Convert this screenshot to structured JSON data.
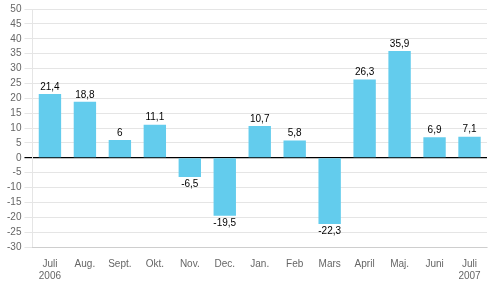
{
  "chart_data": {
    "type": "bar",
    "categories": [
      "Juli\n2006",
      "Aug.",
      "Sept.",
      "Okt.",
      "Nov.",
      "Dec.",
      "Jan.",
      "Feb",
      "Mars",
      "April",
      "Maj.",
      "Juni",
      "Juli\n2007"
    ],
    "values": [
      21.4,
      18.8,
      6.0,
      11.1,
      -6.5,
      -19.5,
      10.7,
      5.8,
      -22.3,
      26.3,
      35.9,
      6.9,
      7.1
    ],
    "value_labels": [
      "21,4",
      "18,8",
      "6",
      "11,1",
      "-6,5",
      "-19,5",
      "10,7",
      "5,8",
      "-22,3",
      "26,3",
      "35,9",
      "6,9",
      "7,1"
    ],
    "data_labels": true,
    "color": "#63CCED",
    "ylim": [
      -30,
      50
    ],
    "yticks": [
      -30,
      -25,
      -20,
      -15,
      -10,
      -5,
      0,
      5,
      10,
      15,
      20,
      25,
      30,
      35,
      40,
      45,
      50
    ],
    "grid": true
  }
}
